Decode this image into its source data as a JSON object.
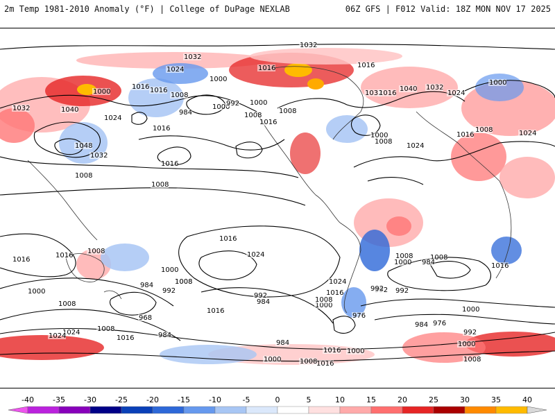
{
  "header": {
    "left_title": "2m Temp 1981-2010 Anomaly (°F) | College of DuPage NEXLAB",
    "right_title": "06Z GFS | F012 Valid: 18Z MON NOV 17 2025"
  },
  "map": {
    "projection": "cylindrical-equidistant",
    "field": "2m temperature anomaly",
    "contour_field": "sea level pressure",
    "isobar_labels": [
      "1032",
      "1032",
      "1016",
      "1024",
      "1000",
      "1016",
      "1016",
      "1008",
      "1000",
      "992",
      "1000",
      "984",
      "1008",
      "1040",
      "1032",
      "1024",
      "1000",
      "1048",
      "1032",
      "1016",
      "1008",
      "1016",
      "1032",
      "1016",
      "1040",
      "1032",
      "1024",
      "1000",
      "1008",
      "1016",
      "1000",
      "1008",
      "1024",
      "1008",
      "1024",
      "1016",
      "1016",
      "1008",
      "1008",
      "1016",
      "1016",
      "1016",
      "1024",
      "1016",
      "1008",
      "1000",
      "1008",
      "984",
      "992",
      "1000",
      "1008",
      "1024",
      "992",
      "984",
      "1016",
      "1008",
      "1000",
      "976",
      "984",
      "992",
      "968",
      "984",
      "976",
      "992",
      "1000",
      "1016",
      "1016",
      "1024",
      "1000",
      "1008",
      "992",
      "1000",
      "1008",
      "1016",
      "1008",
      "1000",
      "984",
      "1016",
      "1024",
      "1008",
      "992",
      "984",
      "1000",
      "1008"
    ]
  },
  "colorbar": {
    "min": -40,
    "max": 40,
    "step": 5,
    "tick_labels": [
      "-40",
      "-35",
      "-30",
      "-25",
      "-20",
      "-15",
      "-10",
      "-5",
      "0",
      "5",
      "10",
      "15",
      "20",
      "25",
      "30",
      "35",
      "40"
    ],
    "colors": [
      "#ee55ee",
      "#bb22dd",
      "#8800bb",
      "#000088",
      "#0a40b8",
      "#2d68d8",
      "#6699ee",
      "#a8c6f4",
      "#dbe8fb",
      "#ffffff",
      "#ffe0e0",
      "#ffaaaa",
      "#ff6f6f",
      "#e62525",
      "#aa0000",
      "#ff8a00",
      "#ffbb00",
      "#ffe15a",
      "#d9d9d9"
    ]
  }
}
